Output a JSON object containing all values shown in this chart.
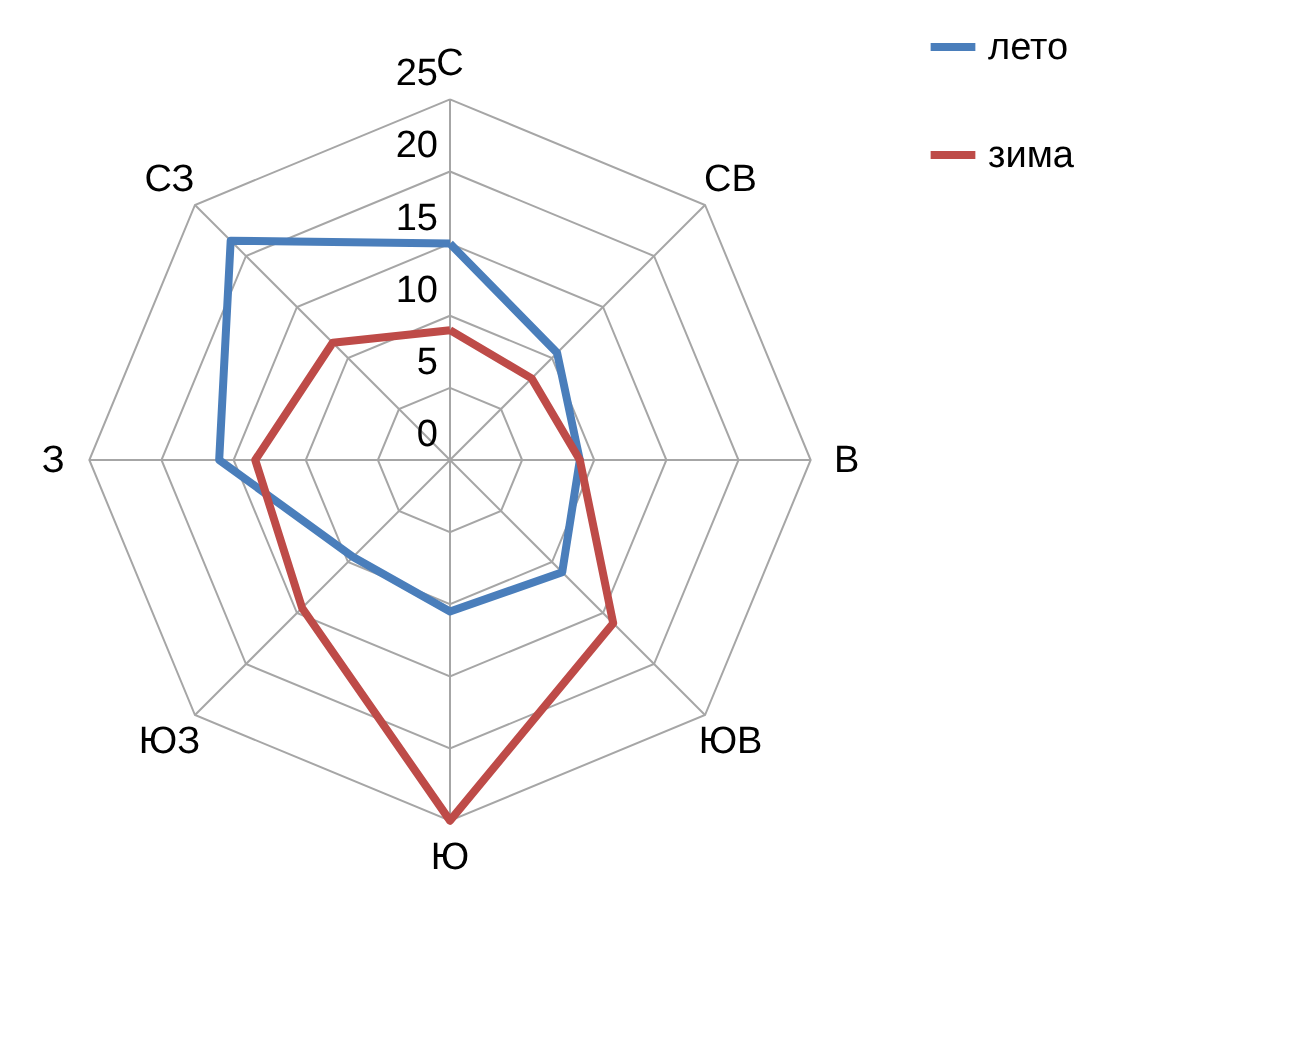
{
  "chart_data": {
    "type": "radar",
    "categories": [
      "С",
      "СВ",
      "В",
      "ЮВ",
      "Ю",
      "ЮЗ",
      "З",
      "СЗ"
    ],
    "series": [
      {
        "name": "лето",
        "color": "#4a7ebb",
        "values": [
          15,
          10.5,
          9,
          11,
          10.5,
          9.5,
          16,
          21.5
        ]
      },
      {
        "name": "зима",
        "color": "#be4b48",
        "values": [
          9,
          8,
          9,
          16,
          25,
          14.5,
          13.5,
          11.5
        ]
      }
    ],
    "ylim": [
      0,
      25
    ],
    "yticks": [
      0,
      5,
      10,
      15,
      20,
      25
    ],
    "grid": true,
    "legend": "right"
  }
}
